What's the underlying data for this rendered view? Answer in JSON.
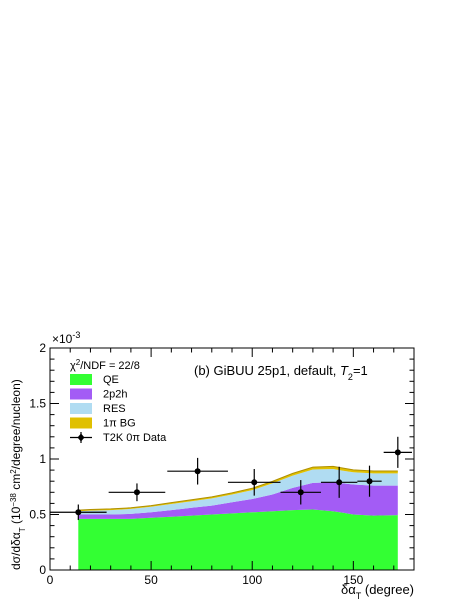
{
  "chart_data": {
    "type": "area",
    "title": "(b) GiBUU 25p1, default, T2=1",
    "title_parts": {
      "main": "(b) GiBUU 25p1, default, ",
      "var": "T",
      "sub": "2",
      "tail": "=1"
    },
    "xlabel": {
      "main": "δα",
      "sub": "T",
      "tail": " (degree)"
    },
    "ylabel": {
      "p1": "dσ/dδα",
      "sub": "T",
      "p2": " (10",
      "sup": "−38",
      "p3": " cm",
      "sup2": "2",
      "p4": "/degree/nucleon)"
    },
    "y_exponent": "×10",
    "y_exponent_power": "-3",
    "xlim": [
      0,
      180
    ],
    "ylim": [
      0,
      2
    ],
    "x_ticks": [
      "0",
      "50",
      "100",
      "150"
    ],
    "x_tick_values": [
      0,
      50,
      100,
      150
    ],
    "y_ticks": [
      "0",
      "0.5",
      "1",
      "1.5",
      "2"
    ],
    "y_tick_values": [
      0,
      0.5,
      1,
      1.5,
      2
    ],
    "x_minor_step": 10,
    "y_minor_step": 0.1,
    "chi2": {
      "label": "χ",
      "sup": "2",
      "tail": "/NDF = 22/8"
    },
    "legend_position": "top-left",
    "legend": [
      {
        "label": "QE",
        "kind": "fill",
        "color": "#33ff33"
      },
      {
        "label": "2p2h",
        "kind": "fill",
        "color": "#a35cf5"
      },
      {
        "label": "RES",
        "kind": "fill",
        "color": "#b0dcf2"
      },
      {
        "label": "1π BG",
        "kind": "fill",
        "color": "#e0c000"
      },
      {
        "label": "T2K 0π Data",
        "kind": "marker",
        "color": "#000000"
      }
    ],
    "x": [
      14,
      20,
      30,
      40,
      50,
      60,
      70,
      80,
      90,
      100,
      110,
      120,
      130,
      140,
      145,
      150,
      160,
      172
    ],
    "series": [
      {
        "name": "QE",
        "color": "#33ff33",
        "values": [
          0.46,
          0.46,
          0.46,
          0.46,
          0.47,
          0.48,
          0.49,
          0.5,
          0.51,
          0.52,
          0.53,
          0.54,
          0.545,
          0.53,
          0.515,
          0.5,
          0.49,
          0.495
        ]
      },
      {
        "name": "2p2h",
        "color": "#a35cf5",
        "values": [
          0.04,
          0.04,
          0.04,
          0.045,
          0.05,
          0.06,
          0.07,
          0.08,
          0.1,
          0.12,
          0.15,
          0.2,
          0.24,
          0.26,
          0.265,
          0.27,
          0.27,
          0.265
        ]
      },
      {
        "name": "RES",
        "color": "#b0dcf2",
        "values": [
          0.03,
          0.035,
          0.04,
          0.045,
          0.05,
          0.055,
          0.06,
          0.065,
          0.07,
          0.08,
          0.1,
          0.11,
          0.12,
          0.12,
          0.115,
          0.11,
          0.11,
          0.11
        ]
      },
      {
        "name": "1π BG",
        "color": "#e0c000",
        "values": [
          0.01,
          0.01,
          0.01,
          0.01,
          0.01,
          0.012,
          0.013,
          0.014,
          0.015,
          0.016,
          0.018,
          0.02,
          0.022,
          0.023,
          0.023,
          0.022,
          0.022,
          0.022
        ]
      }
    ],
    "data_points": {
      "name": "T2K 0π Data",
      "x": [
        14,
        43,
        73,
        101,
        124,
        143,
        158,
        172
      ],
      "y": [
        0.52,
        0.7,
        0.89,
        0.79,
        0.7,
        0.79,
        0.8,
        1.06
      ],
      "xerr": [
        14,
        14,
        15,
        13,
        10,
        9,
        6,
        7
      ],
      "yerr": [
        0.07,
        0.08,
        0.12,
        0.12,
        0.11,
        0.14,
        0.14,
        0.14
      ]
    }
  }
}
